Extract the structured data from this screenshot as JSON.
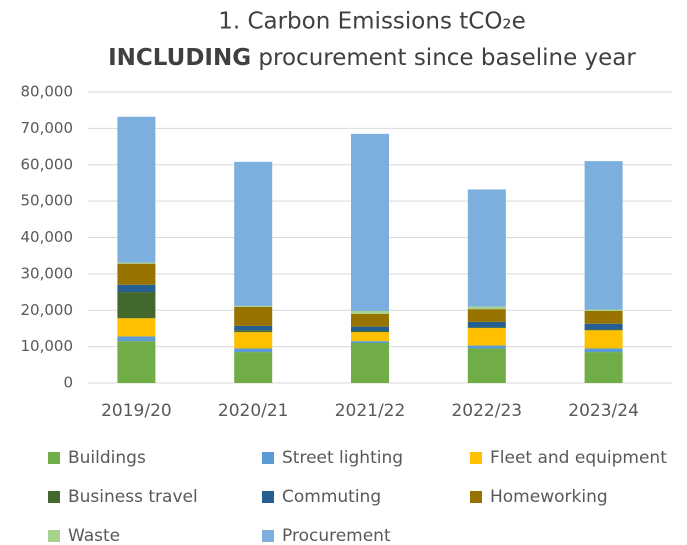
{
  "chart_data": {
    "type": "stacked_bar",
    "title": "1.   Carbon Emissions tCO₂e",
    "subtitle_emphasis": "INCLUDING",
    "subtitle": "procurement since baseline year",
    "categories": [
      "2019/20",
      "2020/21",
      "2021/22",
      "2022/23",
      "2023/24"
    ],
    "series": [
      {
        "name": "Buildings",
        "color": "#70ad47",
        "values": [
          11500,
          8500,
          11000,
          9500,
          8500
        ]
      },
      {
        "name": "Street lighting",
        "color": "#5b9bd5",
        "values": [
          1300,
          1000,
          500,
          800,
          1000
        ]
      },
      {
        "name": "Fleet and equipment",
        "color": "#ffc000",
        "values": [
          5000,
          4500,
          2500,
          4800,
          5000
        ]
      },
      {
        "name": "Business travel",
        "color": "#43682b",
        "values": [
          7200,
          500,
          300,
          200,
          200
        ]
      },
      {
        "name": "Commuting",
        "color": "#255e91",
        "values": [
          2000,
          1200,
          1200,
          1500,
          1600
        ]
      },
      {
        "name": "Homeworking",
        "color": "#997300",
        "values": [
          5800,
          5200,
          3500,
          3500,
          3500
        ]
      },
      {
        "name": "Waste",
        "color": "#a9d18e",
        "values": [
          300,
          300,
          800,
          700,
          400
        ]
      },
      {
        "name": "Procurement",
        "color": "#7cafdd",
        "values": [
          40100,
          39600,
          48700,
          32200,
          40800
        ]
      }
    ],
    "ylim": [
      0,
      80000
    ],
    "yticks": [
      0,
      {
        "value": 10000,
        "label": "10,000"
      },
      {
        "value": 20000,
        "label": "20,000"
      },
      {
        "value": 30000,
        "label": "30,000"
      },
      {
        "value": 40000,
        "label": "40,000"
      },
      {
        "value": 50000,
        "label": "50,000"
      },
      {
        "value": 60000,
        "label": "60,000"
      },
      {
        "value": 70000,
        "label": "70,000"
      },
      {
        "value": 80000,
        "label": "80,000"
      }
    ],
    "grid": true,
    "legend": "bottom"
  }
}
